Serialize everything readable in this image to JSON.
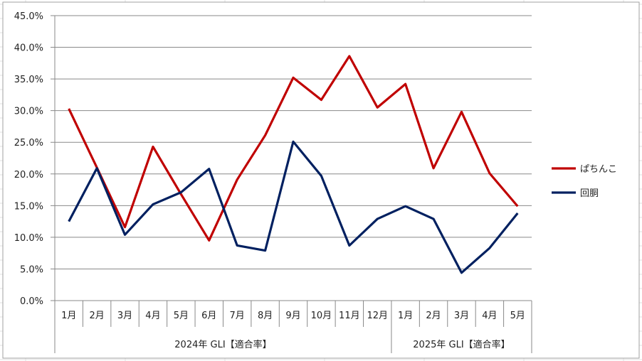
{
  "chart_data": {
    "type": "line",
    "ylim": [
      0,
      45
    ],
    "y_ticks": [
      "0.0%",
      "5.0%",
      "10.0%",
      "15.0%",
      "20.0%",
      "25.0%",
      "30.0%",
      "35.0%",
      "40.0%",
      "45.0%"
    ],
    "grid": true,
    "legend_position": "right",
    "categories": [
      "1月",
      "2月",
      "3月",
      "4月",
      "5月",
      "6月",
      "7月",
      "8月",
      "9月",
      "10月",
      "11月",
      "12月",
      "1月",
      "2月",
      "3月",
      "4月",
      "5月"
    ],
    "groups": [
      {
        "label": "2024年 GLI【適合率】",
        "count": 12
      },
      {
        "label": "2025年 GLI【適合率】",
        "count": 5
      }
    ],
    "series": [
      {
        "name": "ぱちんこ",
        "color": "#C00000",
        "values": [
          30.3,
          21.0,
          11.6,
          24.3,
          16.8,
          9.5,
          19.1,
          26.1,
          35.2,
          31.7,
          38.6,
          30.5,
          34.2,
          20.9,
          29.8,
          20.1,
          14.9
        ]
      },
      {
        "name": "回胴",
        "color": "#002060",
        "values": [
          12.5,
          20.9,
          10.4,
          15.2,
          17.1,
          20.8,
          8.7,
          7.9,
          25.1,
          19.7,
          8.7,
          12.9,
          14.9,
          12.9,
          4.4,
          8.3,
          13.8
        ]
      }
    ]
  }
}
